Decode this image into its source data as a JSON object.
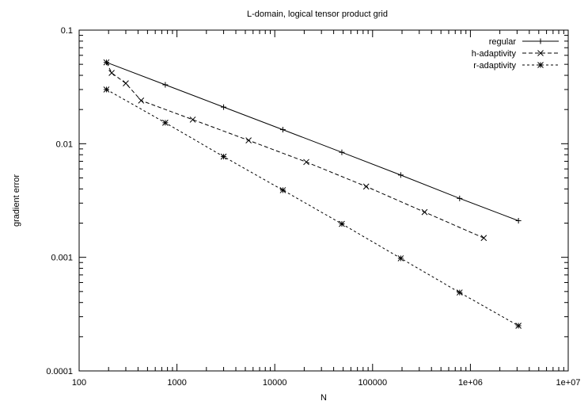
{
  "chart_data": {
    "type": "line",
    "title": "L-domain, logical tensor product grid",
    "xlabel": "N",
    "ylabel": "gradient error",
    "xscale": "log",
    "yscale": "log",
    "xlim": [
      100,
      10000000
    ],
    "ylim": [
      0.0001,
      0.1
    ],
    "xticks": [
      100,
      1000,
      10000,
      100000,
      1000000,
      10000000
    ],
    "xtick_labels": [
      "100",
      "1000",
      "10000",
      "100000",
      "1e+06",
      "1e+07"
    ],
    "yticks": [
      0.0001,
      0.001,
      0.01,
      0.1
    ],
    "ytick_labels": [
      "0.0001",
      "0.001",
      "0.01",
      "0.1"
    ],
    "grid": false,
    "legend_position": "top-right",
    "series": [
      {
        "name": "regular",
        "marker": "plus",
        "line_style": "solid",
        "x": [
          190,
          760,
          3000,
          12100,
          48500,
          194000,
          776000,
          3100000
        ],
        "y": [
          0.052,
          0.033,
          0.021,
          0.0133,
          0.0084,
          0.0053,
          0.0033,
          0.0021
        ]
      },
      {
        "name": "h-adaptivity",
        "marker": "cross",
        "line_style": "dashed",
        "x": [
          190,
          215,
          300,
          430,
          1450,
          5400,
          21000,
          86000,
          340000,
          1370000
        ],
        "y": [
          0.052,
          0.042,
          0.034,
          0.024,
          0.0163,
          0.0107,
          0.0069,
          0.0042,
          0.0025,
          0.00148
        ]
      },
      {
        "name": "r-adaptivity",
        "marker": "star",
        "line_style": "dotted",
        "x": [
          190,
          760,
          3000,
          12100,
          48500,
          194000,
          776000,
          3100000
        ],
        "y": [
          0.03,
          0.0153,
          0.0077,
          0.0039,
          0.00197,
          0.00098,
          0.00049,
          0.00025
        ]
      }
    ]
  }
}
